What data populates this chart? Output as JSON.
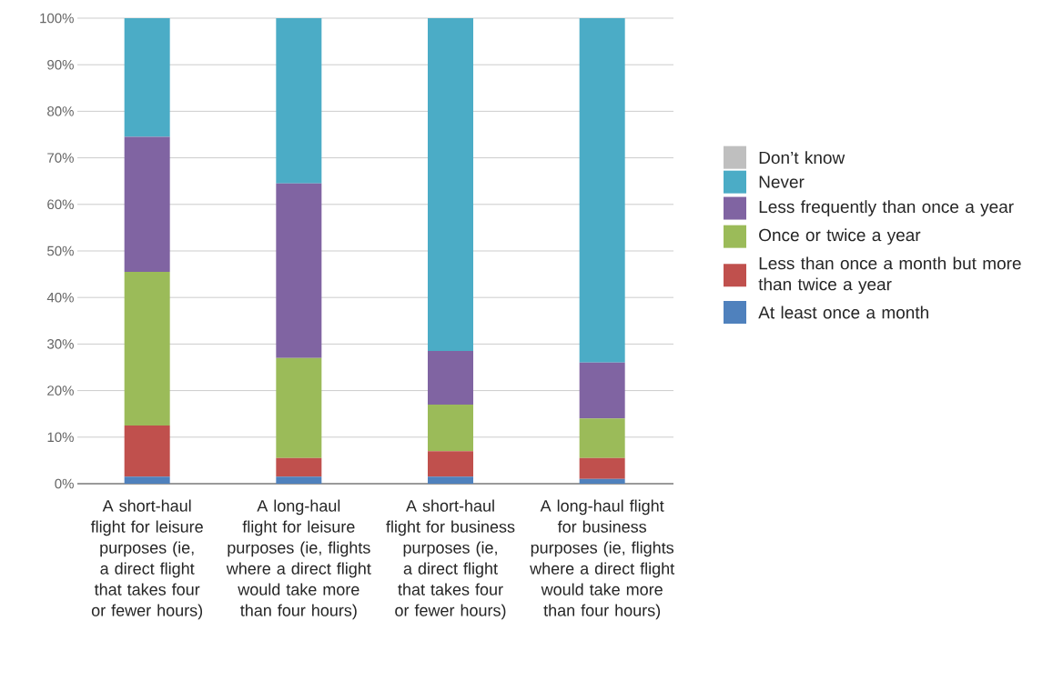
{
  "chart_data": {
    "type": "bar",
    "stacked": true,
    "categories": [
      "A short-haul flight for leisure purposes (ie, a direct flight that takes four or fewer hours)",
      "A long-haul flight for leisure purposes (ie, flights where a direct flight would take more than four hours)",
      "A short-haul flight for business purposes (ie, a direct flight that takes four or fewer hours)",
      "A long-haul flight for business purposes (ie, flights where a direct flight would take more than four hours)"
    ],
    "series": [
      {
        "name": "At least once a month",
        "color": "#4f81bd",
        "values": [
          1.5,
          1.5,
          1.5,
          1
        ]
      },
      {
        "name": "Less than once a month but more than twice a year",
        "color": "#c0504d",
        "values": [
          11,
          4,
          5.5,
          4.5
        ]
      },
      {
        "name": "Once or twice a year",
        "color": "#9bbb59",
        "values": [
          33,
          21.5,
          10,
          8.5
        ]
      },
      {
        "name": "Less frequently than once a year",
        "color": "#8064a2",
        "values": [
          29,
          37.5,
          11.5,
          12
        ]
      },
      {
        "name": "Never",
        "color": "#4bacc6",
        "values": [
          25.5,
          35.5,
          71.5,
          74
        ]
      },
      {
        "name": "Don’t know",
        "color": "#bfbfbf",
        "values": [
          0,
          0,
          0,
          0
        ]
      }
    ],
    "ylim": [
      0,
      100
    ],
    "yticks": [
      {
        "value": 0,
        "label": "0%"
      },
      {
        "value": 10,
        "label": "10%"
      },
      {
        "value": 20,
        "label": "20%"
      },
      {
        "value": 30,
        "label": "30%"
      },
      {
        "value": 40,
        "label": "40%"
      },
      {
        "value": 50,
        "label": "50%"
      },
      {
        "value": 60,
        "label": "60%"
      },
      {
        "value": 70,
        "label": "70%"
      },
      {
        "value": 80,
        "label": "80%"
      },
      {
        "value": 90,
        "label": "90%"
      },
      {
        "value": 100,
        "label": "100%"
      }
    ],
    "grid": "y",
    "legend": "right"
  }
}
